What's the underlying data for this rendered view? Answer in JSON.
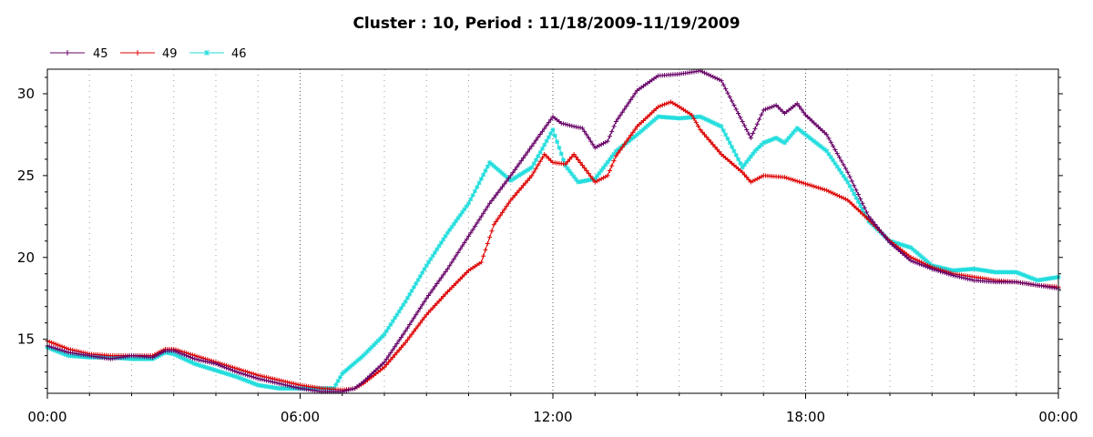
{
  "chart_data": {
    "type": "line",
    "title": "Cluster : 10, Period : 11/18/2009-11/19/2009",
    "xlabel": "",
    "ylabel": "",
    "x_unit": "hours",
    "xlim": [
      0,
      24
    ],
    "ylim": [
      11.7,
      31.5
    ],
    "x_ticks": [
      {
        "value": 0,
        "label": "00:00"
      },
      {
        "value": 6,
        "label": "06:00"
      },
      {
        "value": 12,
        "label": "12:00"
      },
      {
        "value": 18,
        "label": "18:00"
      },
      {
        "value": 24,
        "label": "00:00"
      }
    ],
    "y_ticks": [
      {
        "value": 15,
        "label": "15"
      },
      {
        "value": 20,
        "label": "20"
      },
      {
        "value": 25,
        "label": "25"
      },
      {
        "value": 30,
        "label": "30"
      }
    ],
    "grid": "dotted vertical at hourly intervals",
    "legend_position": "top-left",
    "series": [
      {
        "name": "45",
        "color": "#660066",
        "marker": "plus",
        "points": [
          [
            0,
            14.6
          ],
          [
            0.5,
            14.2
          ],
          [
            1,
            14.0
          ],
          [
            1.5,
            13.8
          ],
          [
            2,
            14.0
          ],
          [
            2.5,
            13.9
          ],
          [
            2.8,
            14.3
          ],
          [
            3,
            14.3
          ],
          [
            3.5,
            13.8
          ],
          [
            4,
            13.5
          ],
          [
            4.5,
            13.0
          ],
          [
            5,
            12.6
          ],
          [
            5.5,
            12.3
          ],
          [
            6,
            12.0
          ],
          [
            6.5,
            11.8
          ],
          [
            7,
            11.8
          ],
          [
            7.3,
            12.0
          ],
          [
            7.5,
            12.4
          ],
          [
            8,
            13.6
          ],
          [
            8.5,
            15.5
          ],
          [
            9,
            17.5
          ],
          [
            9.5,
            19.3
          ],
          [
            10,
            21.3
          ],
          [
            10.5,
            23.3
          ],
          [
            11,
            25.0
          ],
          [
            11.5,
            26.8
          ],
          [
            12,
            28.6
          ],
          [
            12.2,
            28.2
          ],
          [
            12.5,
            28.0
          ],
          [
            12.7,
            27.9
          ],
          [
            13,
            26.7
          ],
          [
            13.3,
            27.1
          ],
          [
            13.5,
            28.3
          ],
          [
            14,
            30.2
          ],
          [
            14.5,
            31.1
          ],
          [
            15,
            31.2
          ],
          [
            15.5,
            31.4
          ],
          [
            16,
            30.8
          ],
          [
            16.5,
            28.3
          ],
          [
            16.7,
            27.3
          ],
          [
            17,
            29.0
          ],
          [
            17.3,
            29.3
          ],
          [
            17.5,
            28.8
          ],
          [
            17.8,
            29.4
          ],
          [
            18,
            28.7
          ],
          [
            18.5,
            27.5
          ],
          [
            19,
            25.2
          ],
          [
            19.5,
            22.5
          ],
          [
            20,
            20.9
          ],
          [
            20.5,
            19.8
          ],
          [
            21,
            19.3
          ],
          [
            21.5,
            18.9
          ],
          [
            22,
            18.6
          ],
          [
            22.5,
            18.5
          ],
          [
            23,
            18.5
          ],
          [
            23.5,
            18.3
          ],
          [
            24,
            18.1
          ]
        ]
      },
      {
        "name": "49",
        "color": "#dd0000",
        "marker": "plus",
        "points": [
          [
            0,
            14.9
          ],
          [
            0.5,
            14.4
          ],
          [
            1,
            14.1
          ],
          [
            1.5,
            14.0
          ],
          [
            2,
            14.0
          ],
          [
            2.5,
            14.0
          ],
          [
            2.8,
            14.4
          ],
          [
            3,
            14.4
          ],
          [
            3.5,
            14.0
          ],
          [
            4,
            13.6
          ],
          [
            4.5,
            13.2
          ],
          [
            5,
            12.8
          ],
          [
            5.5,
            12.5
          ],
          [
            6,
            12.2
          ],
          [
            6.5,
            12.0
          ],
          [
            7,
            11.9
          ],
          [
            7.3,
            12.0
          ],
          [
            7.5,
            12.3
          ],
          [
            8,
            13.3
          ],
          [
            8.5,
            14.8
          ],
          [
            9,
            16.5
          ],
          [
            9.5,
            17.9
          ],
          [
            10,
            19.2
          ],
          [
            10.3,
            19.7
          ],
          [
            10.6,
            22.0
          ],
          [
            11,
            23.5
          ],
          [
            11.5,
            25.0
          ],
          [
            11.8,
            26.3
          ],
          [
            12,
            25.8
          ],
          [
            12.3,
            25.7
          ],
          [
            12.5,
            26.3
          ],
          [
            12.8,
            25.3
          ],
          [
            13,
            24.6
          ],
          [
            13.3,
            25.0
          ],
          [
            13.5,
            26.2
          ],
          [
            14,
            28.0
          ],
          [
            14.5,
            29.2
          ],
          [
            14.8,
            29.5
          ],
          [
            15,
            29.2
          ],
          [
            15.3,
            28.7
          ],
          [
            15.5,
            27.8
          ],
          [
            16,
            26.3
          ],
          [
            16.5,
            25.2
          ],
          [
            16.7,
            24.6
          ],
          [
            17,
            25.0
          ],
          [
            17.5,
            24.9
          ],
          [
            18,
            24.5
          ],
          [
            18.5,
            24.1
          ],
          [
            19,
            23.5
          ],
          [
            19.5,
            22.3
          ],
          [
            20,
            21.0
          ],
          [
            20.5,
            20.0
          ],
          [
            21,
            19.4
          ],
          [
            21.5,
            19.0
          ],
          [
            22,
            18.8
          ],
          [
            22.5,
            18.6
          ],
          [
            23,
            18.5
          ],
          [
            23.5,
            18.3
          ],
          [
            24,
            18.2
          ]
        ]
      },
      {
        "name": "46",
        "color": "#22dddd",
        "marker": "star",
        "points": [
          [
            0,
            14.5
          ],
          [
            0.5,
            14.0
          ],
          [
            1,
            13.9
          ],
          [
            1.5,
            13.9
          ],
          [
            2,
            13.8
          ],
          [
            2.5,
            13.8
          ],
          [
            2.8,
            14.2
          ],
          [
            3,
            14.1
          ],
          [
            3.5,
            13.5
          ],
          [
            4,
            13.1
          ],
          [
            4.5,
            12.7
          ],
          [
            5,
            12.2
          ],
          [
            5.5,
            12.0
          ],
          [
            6,
            12.0
          ],
          [
            6.5,
            12.0
          ],
          [
            6.8,
            12.0
          ],
          [
            7,
            12.9
          ],
          [
            7.5,
            14.0
          ],
          [
            8,
            15.3
          ],
          [
            8.5,
            17.3
          ],
          [
            9,
            19.5
          ],
          [
            9.5,
            21.5
          ],
          [
            10,
            23.3
          ],
          [
            10.5,
            25.8
          ],
          [
            11,
            24.7
          ],
          [
            11.5,
            25.5
          ],
          [
            12,
            27.8
          ],
          [
            12.3,
            25.6
          ],
          [
            12.6,
            24.6
          ],
          [
            13,
            24.8
          ],
          [
            13.5,
            26.5
          ],
          [
            14,
            27.5
          ],
          [
            14.5,
            28.6
          ],
          [
            15,
            28.5
          ],
          [
            15.5,
            28.6
          ],
          [
            16,
            28.0
          ],
          [
            16.5,
            25.5
          ],
          [
            16.8,
            26.5
          ],
          [
            17,
            27.0
          ],
          [
            17.3,
            27.3
          ],
          [
            17.5,
            27.0
          ],
          [
            17.8,
            27.9
          ],
          [
            18,
            27.5
          ],
          [
            18.5,
            26.5
          ],
          [
            19,
            24.6
          ],
          [
            19.5,
            22.2
          ],
          [
            20,
            21.0
          ],
          [
            20.5,
            20.6
          ],
          [
            21,
            19.5
          ],
          [
            21.5,
            19.2
          ],
          [
            22,
            19.3
          ],
          [
            22.5,
            19.1
          ],
          [
            23,
            19.1
          ],
          [
            23.5,
            18.6
          ],
          [
            24,
            18.8
          ]
        ]
      }
    ]
  }
}
